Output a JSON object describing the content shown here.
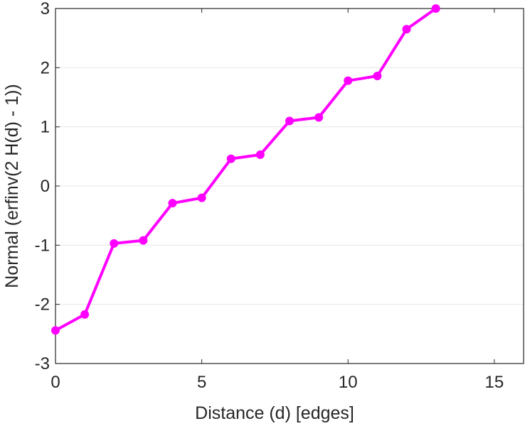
{
  "chart_data": {
    "type": "line",
    "title": "",
    "xlabel": "Distance (d) [edges]",
    "ylabel": "Normal (erfinv(2 H(d) - 1))",
    "xlim": [
      0,
      16
    ],
    "ylim": [
      -3,
      3
    ],
    "xticks": [
      0,
      5,
      10,
      15
    ],
    "xtick_labels": [
      "0",
      "5",
      "10",
      "15"
    ],
    "yticks": [
      -3,
      -2,
      -1,
      0,
      1,
      2,
      3
    ],
    "ytick_labels": [
      "-3",
      "-2",
      "-1",
      "0",
      "1",
      "2",
      "3"
    ],
    "grid": "horizontal",
    "series": [
      {
        "name": "Normal",
        "color": "#ff00ff",
        "marker": "circle",
        "x": [
          0,
          1,
          2,
          3,
          4,
          5,
          6,
          7,
          8,
          9,
          10,
          11,
          12,
          13
        ],
        "y": [
          -2.44,
          -2.17,
          -0.97,
          -0.92,
          -0.29,
          -0.2,
          0.46,
          0.53,
          1.1,
          1.16,
          1.78,
          1.86,
          2.65,
          3.0
        ]
      }
    ]
  }
}
